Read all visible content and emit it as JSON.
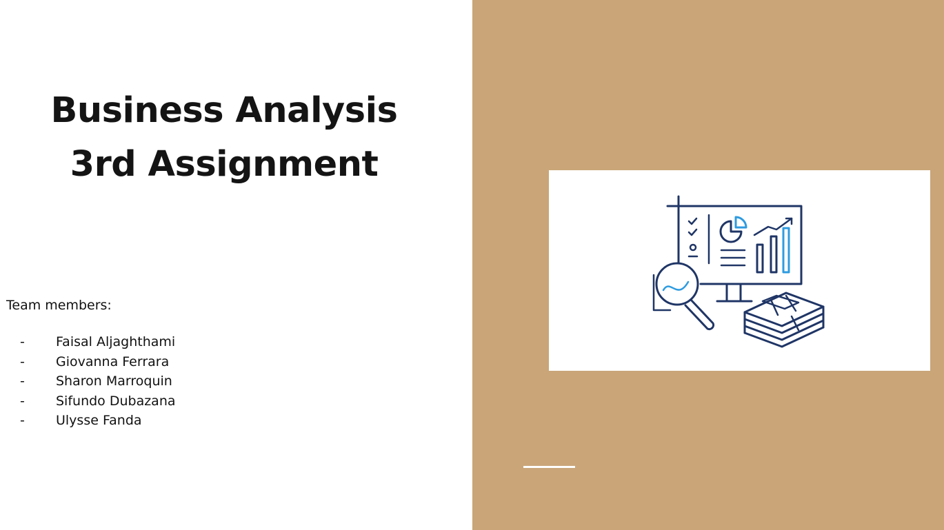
{
  "slide": {
    "title_lines": [
      "Business Analysis",
      "3rd Assignment"
    ],
    "team_label": "Team members:",
    "members": [
      {
        "bullet": "-",
        "name": "Faisal Aljaghthami"
      },
      {
        "bullet": "-",
        "name": "Giovanna Ferrara"
      },
      {
        "bullet": "-",
        "name": "Sharon Marroquin"
      },
      {
        "bullet": "-",
        "name": "Sifundo Dubazana"
      },
      {
        "bullet": "-",
        "name": "Ulysse Fanda"
      }
    ],
    "illustration": "business-analytics-dashboard-icon",
    "colors": {
      "accent_panel": "#c9a578",
      "icon_navy": "#1f3566",
      "icon_blue": "#2e9be0"
    }
  }
}
